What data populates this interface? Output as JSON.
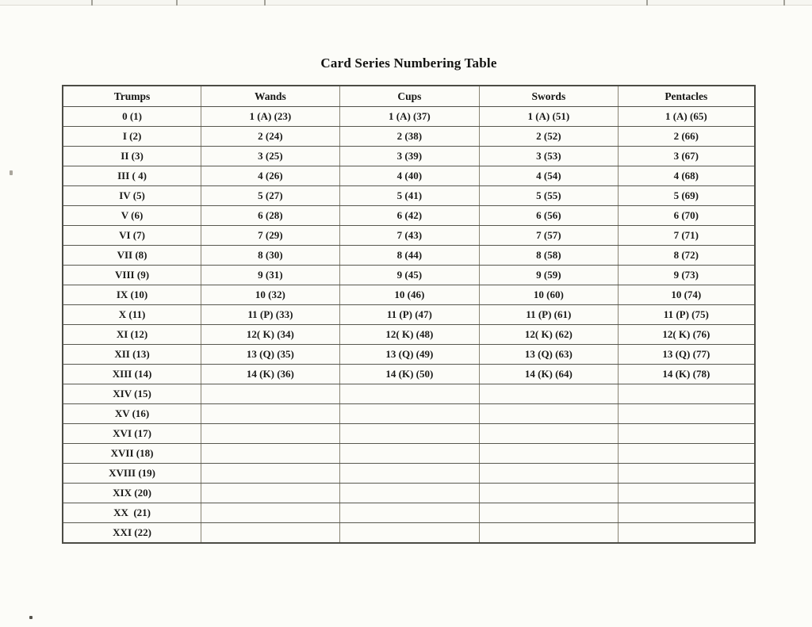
{
  "title": "Card Series Numbering Table",
  "colors": {
    "paper": "#fcfcf8",
    "ink": "#1a1a18",
    "table_border": "#4c4c45"
  },
  "table": {
    "headers": [
      "Trumps",
      "Wands",
      "Cups",
      "Swords",
      "Pentacles"
    ],
    "rows": [
      [
        "0 (1)",
        "1 (A) (23)",
        "1 (A) (37)",
        "1 (A) (51)",
        "1 (A) (65)"
      ],
      [
        "I (2)",
        "2 (24)",
        "2 (38)",
        "2 (52)",
        "2 (66)"
      ],
      [
        "II (3)",
        "3 (25)",
        "3 (39)",
        "3 (53)",
        "3 (67)"
      ],
      [
        "III ( 4)",
        "4 (26)",
        "4 (40)",
        "4 (54)",
        "4 (68)"
      ],
      [
        "IV (5)",
        "5 (27)",
        "5 (41)",
        "5 (55)",
        "5 (69)"
      ],
      [
        "V (6)",
        "6 (28)",
        "6 (42)",
        "6 (56)",
        "6 (70)"
      ],
      [
        "VI (7)",
        "7 (29)",
        "7 (43)",
        "7 (57)",
        "7 (71)"
      ],
      [
        "VII (8)",
        "8 (30)",
        "8 (44)",
        "8 (58)",
        "8 (72)"
      ],
      [
        "VIII (9)",
        "9 (31)",
        "9 (45)",
        "9 (59)",
        "9 (73)"
      ],
      [
        "IX (10)",
        "10 (32)",
        "10 (46)",
        "10 (60)",
        "10 (74)"
      ],
      [
        "X (11)",
        "11 (P) (33)",
        "11 (P) (47)",
        "11 (P) (61)",
        "11 (P) (75)"
      ],
      [
        "XI (12)",
        "12( K) (34)",
        "12( K) (48)",
        "12( K) (62)",
        "12( K) (76)"
      ],
      [
        "XII (13)",
        "13 (Q) (35)",
        "13 (Q) (49)",
        "13 (Q) (63)",
        "13 (Q) (77)"
      ],
      [
        "XIII (14)",
        "14 (K) (36)",
        "14 (K) (50)",
        "14 (K) (64)",
        "14 (K) (78)"
      ],
      [
        "XIV (15)",
        "",
        "",
        "",
        ""
      ],
      [
        "XV (16)",
        "",
        "",
        "",
        ""
      ],
      [
        "XVI (17)",
        "",
        "",
        "",
        ""
      ],
      [
        "XVII (18)",
        "",
        "",
        "",
        ""
      ],
      [
        "XVIII (19)",
        "",
        "",
        "",
        ""
      ],
      [
        "XIX (20)",
        "",
        "",
        "",
        ""
      ],
      [
        "XX  (21)",
        "",
        "",
        "",
        ""
      ],
      [
        "XXI (22)",
        "",
        "",
        "",
        ""
      ]
    ]
  }
}
